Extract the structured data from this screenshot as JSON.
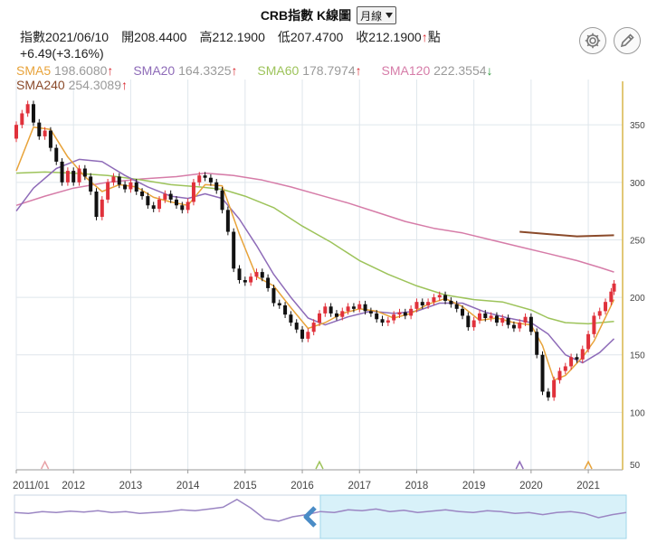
{
  "header": {
    "title": "CRB指數 K線圖",
    "period_select": "月線"
  },
  "quote": {
    "date": "指數2021/06/10",
    "open": "開208.4400",
    "high": "高212.1900",
    "low": "低207.4700",
    "close": "收212.1900",
    "close_arrow": "↑",
    "unit": "點",
    "change": "+6.49(+3.16%)"
  },
  "toolbar": {
    "settings_icon": "gear-icon",
    "draw_icon": "pencil-icon"
  },
  "moving_averages": [
    {
      "label": "SMA5",
      "value": "198.6080",
      "arrow": "↑",
      "color": "#e8a33a",
      "arrow_color": "#d9262e"
    },
    {
      "label": "SMA20",
      "value": "164.3325",
      "arrow": "↑",
      "color": "#8e6bb8",
      "arrow_color": "#d9262e"
    },
    {
      "label": "SMA60",
      "value": "178.7974",
      "arrow": "↑",
      "color": "#9dc35a",
      "arrow_color": "#d9262e"
    },
    {
      "label": "SMA120",
      "value": "222.3554",
      "arrow": "↓",
      "color": "#d67ca8",
      "arrow_color": "#2a9a3a"
    },
    {
      "label": "SMA240",
      "value": "254.3089",
      "arrow": "↑",
      "color": "#8a4a2a",
      "arrow_color": "#d9262e"
    }
  ],
  "colors": {
    "up_candle": "#e0313b",
    "down_candle": "#111111",
    "grid": "#dfe6ec",
    "axis_text": "#444444",
    "navigator_fill": "#d8f1f9",
    "navigator_line": "#9b86c3",
    "navigator_arrow": "#4a8cc6"
  },
  "chart_data": {
    "type": "candlestick",
    "x_axis_labels": [
      "2011/01",
      "2012",
      "2013",
      "2014",
      "2015",
      "2016",
      "2017",
      "2018",
      "2019",
      "2020",
      "2021"
    ],
    "y_axis_labels": [
      "350",
      "300",
      "250",
      "200",
      "150",
      "100",
      "50"
    ],
    "ylim": [
      50,
      380
    ],
    "xlim": [
      2011.0,
      2021.6
    ],
    "candles": [
      [
        2011.0,
        338,
        350
      ],
      [
        2011.1,
        350,
        360
      ],
      [
        2011.2,
        360,
        368
      ],
      [
        2011.3,
        368,
        352
      ],
      [
        2011.4,
        352,
        340
      ],
      [
        2011.5,
        340,
        345
      ],
      [
        2011.6,
        345,
        330
      ],
      [
        2011.7,
        330,
        318
      ],
      [
        2011.8,
        318,
        300
      ],
      [
        2011.9,
        300,
        310
      ],
      [
        2012.0,
        310,
        300
      ],
      [
        2012.1,
        300,
        312
      ],
      [
        2012.2,
        312,
        305
      ],
      [
        2012.3,
        305,
        292
      ],
      [
        2012.4,
        292,
        270
      ],
      [
        2012.5,
        270,
        285
      ],
      [
        2012.6,
        285,
        300
      ],
      [
        2012.7,
        300,
        305
      ],
      [
        2012.8,
        305,
        298
      ],
      [
        2012.9,
        298,
        294
      ],
      [
        2013.0,
        294,
        300
      ],
      [
        2013.1,
        300,
        292
      ],
      [
        2013.2,
        292,
        288
      ],
      [
        2013.3,
        288,
        280
      ],
      [
        2013.4,
        280,
        277
      ],
      [
        2013.5,
        277,
        285
      ],
      [
        2013.6,
        285,
        290
      ],
      [
        2013.7,
        290,
        285
      ],
      [
        2013.8,
        285,
        280
      ],
      [
        2013.9,
        280,
        276
      ],
      [
        2014.0,
        276,
        283
      ],
      [
        2014.1,
        283,
        300
      ],
      [
        2014.2,
        300,
        306
      ],
      [
        2014.3,
        306,
        304
      ],
      [
        2014.4,
        304,
        300
      ],
      [
        2014.5,
        300,
        293
      ],
      [
        2014.6,
        293,
        276
      ],
      [
        2014.7,
        276,
        257
      ],
      [
        2014.8,
        257,
        225
      ],
      [
        2014.9,
        225,
        215
      ],
      [
        2015.0,
        215,
        213
      ],
      [
        2015.1,
        213,
        218
      ],
      [
        2015.2,
        218,
        222
      ],
      [
        2015.3,
        222,
        217
      ],
      [
        2015.4,
        217,
        208
      ],
      [
        2015.5,
        208,
        195
      ],
      [
        2015.6,
        195,
        193
      ],
      [
        2015.7,
        193,
        185
      ],
      [
        2015.8,
        185,
        178
      ],
      [
        2015.9,
        178,
        172
      ],
      [
        2016.0,
        172,
        164
      ],
      [
        2016.1,
        164,
        170
      ],
      [
        2016.2,
        170,
        178
      ],
      [
        2016.3,
        178,
        186
      ],
      [
        2016.4,
        186,
        192
      ],
      [
        2016.5,
        192,
        186
      ],
      [
        2016.6,
        186,
        183
      ],
      [
        2016.7,
        183,
        188
      ],
      [
        2016.8,
        188,
        192
      ],
      [
        2016.9,
        192,
        190
      ],
      [
        2017.0,
        190,
        194
      ],
      [
        2017.1,
        194,
        188
      ],
      [
        2017.2,
        188,
        186
      ],
      [
        2017.3,
        186,
        181
      ],
      [
        2017.4,
        181,
        178
      ],
      [
        2017.5,
        178,
        180
      ],
      [
        2017.6,
        180,
        185
      ],
      [
        2017.7,
        185,
        187
      ],
      [
        2017.8,
        187,
        184
      ],
      [
        2017.9,
        184,
        190
      ],
      [
        2018.0,
        190,
        196
      ],
      [
        2018.1,
        196,
        193
      ],
      [
        2018.2,
        193,
        196
      ],
      [
        2018.3,
        196,
        200
      ],
      [
        2018.4,
        200,
        202
      ],
      [
        2018.5,
        202,
        197
      ],
      [
        2018.6,
        197,
        194
      ],
      [
        2018.7,
        194,
        190
      ],
      [
        2018.8,
        190,
        184
      ],
      [
        2018.9,
        184,
        174
      ],
      [
        2019.0,
        174,
        180
      ],
      [
        2019.1,
        180,
        186
      ],
      [
        2019.2,
        186,
        182
      ],
      [
        2019.3,
        182,
        184
      ],
      [
        2019.4,
        184,
        178
      ],
      [
        2019.5,
        178,
        182
      ],
      [
        2019.6,
        182,
        176
      ],
      [
        2019.7,
        176,
        173
      ],
      [
        2019.8,
        173,
        178
      ],
      [
        2019.9,
        178,
        183
      ],
      [
        2020.0,
        183,
        170
      ],
      [
        2020.1,
        170,
        150
      ],
      [
        2020.2,
        150,
        118
      ],
      [
        2020.3,
        118,
        113
      ],
      [
        2020.4,
        113,
        128
      ],
      [
        2020.5,
        128,
        136
      ],
      [
        2020.6,
        136,
        140
      ],
      [
        2020.7,
        140,
        148
      ],
      [
        2020.8,
        148,
        146
      ],
      [
        2020.9,
        146,
        155
      ],
      [
        2021.0,
        155,
        168
      ],
      [
        2021.1,
        168,
        184
      ],
      [
        2021.2,
        184,
        188
      ],
      [
        2021.3,
        188,
        196
      ],
      [
        2021.4,
        196,
        205
      ],
      [
        2021.45,
        205,
        212
      ]
    ],
    "sma5": [
      [
        2011.0,
        310
      ],
      [
        2011.3,
        348
      ],
      [
        2011.6,
        346
      ],
      [
        2011.9,
        322
      ],
      [
        2012.2,
        305
      ],
      [
        2012.5,
        292
      ],
      [
        2012.8,
        298
      ],
      [
        2013.1,
        296
      ],
      [
        2013.4,
        287
      ],
      [
        2013.7,
        283
      ],
      [
        2014.0,
        280
      ],
      [
        2014.3,
        298
      ],
      [
        2014.6,
        297
      ],
      [
        2014.9,
        255
      ],
      [
        2015.2,
        218
      ],
      [
        2015.5,
        210
      ],
      [
        2015.8,
        191
      ],
      [
        2016.1,
        173
      ],
      [
        2016.4,
        178
      ],
      [
        2016.7,
        186
      ],
      [
        2017.0,
        190
      ],
      [
        2017.3,
        188
      ],
      [
        2017.6,
        182
      ],
      [
        2017.9,
        186
      ],
      [
        2018.2,
        194
      ],
      [
        2018.5,
        199
      ],
      [
        2018.8,
        192
      ],
      [
        2019.1,
        180
      ],
      [
        2019.4,
        182
      ],
      [
        2019.7,
        178
      ],
      [
        2020.0,
        176
      ],
      [
        2020.2,
        158
      ],
      [
        2020.4,
        128
      ],
      [
        2020.6,
        132
      ],
      [
        2020.9,
        148
      ],
      [
        2021.1,
        162
      ],
      [
        2021.45,
        198
      ]
    ],
    "sma20": [
      [
        2011.0,
        275
      ],
      [
        2011.3,
        295
      ],
      [
        2011.7,
        312
      ],
      [
        2012.1,
        320
      ],
      [
        2012.5,
        318
      ],
      [
        2012.9,
        306
      ],
      [
        2013.3,
        296
      ],
      [
        2013.7,
        288
      ],
      [
        2014.0,
        286
      ],
      [
        2014.3,
        290
      ],
      [
        2014.6,
        286
      ],
      [
        2014.9,
        268
      ],
      [
        2015.2,
        245
      ],
      [
        2015.5,
        220
      ],
      [
        2015.8,
        200
      ],
      [
        2016.1,
        182
      ],
      [
        2016.4,
        176
      ],
      [
        2016.8,
        183
      ],
      [
        2017.2,
        188
      ],
      [
        2017.6,
        186
      ],
      [
        2018.0,
        188
      ],
      [
        2018.4,
        195
      ],
      [
        2018.8,
        195
      ],
      [
        2019.2,
        187
      ],
      [
        2019.6,
        182
      ],
      [
        2020.0,
        178
      ],
      [
        2020.3,
        168
      ],
      [
        2020.6,
        150
      ],
      [
        2020.9,
        143
      ],
      [
        2021.2,
        152
      ],
      [
        2021.45,
        164
      ]
    ],
    "sma60": [
      [
        2011.0,
        308
      ],
      [
        2011.5,
        309
      ],
      [
        2012.0,
        308
      ],
      [
        2012.6,
        306
      ],
      [
        2013.2,
        302
      ],
      [
        2013.7,
        298
      ],
      [
        2014.2,
        296
      ],
      [
        2014.6,
        294
      ],
      [
        2015.0,
        288
      ],
      [
        2015.5,
        278
      ],
      [
        2016.0,
        262
      ],
      [
        2016.5,
        248
      ],
      [
        2017.0,
        232
      ],
      [
        2017.5,
        220
      ],
      [
        2018.0,
        210
      ],
      [
        2018.5,
        202
      ],
      [
        2019.0,
        198
      ],
      [
        2019.5,
        196
      ],
      [
        2020.0,
        189
      ],
      [
        2020.3,
        182
      ],
      [
        2020.6,
        178
      ],
      [
        2021.0,
        177
      ],
      [
        2021.45,
        179
      ]
    ],
    "sma120": [
      [
        2011.0,
        280
      ],
      [
        2011.5,
        288
      ],
      [
        2012.0,
        295
      ],
      [
        2012.6,
        300
      ],
      [
        2013.2,
        303
      ],
      [
        2013.8,
        305
      ],
      [
        2014.3,
        308
      ],
      [
        2014.8,
        306
      ],
      [
        2015.3,
        302
      ],
      [
        2015.8,
        296
      ],
      [
        2016.3,
        289
      ],
      [
        2016.8,
        282
      ],
      [
        2017.3,
        274
      ],
      [
        2017.8,
        266
      ],
      [
        2018.3,
        260
      ],
      [
        2018.8,
        256
      ],
      [
        2019.3,
        250
      ],
      [
        2019.8,
        244
      ],
      [
        2020.3,
        238
      ],
      [
        2020.8,
        232
      ],
      [
        2021.2,
        226
      ],
      [
        2021.45,
        222
      ]
    ],
    "sma240": [
      [
        2019.8,
        257
      ],
      [
        2020.3,
        255
      ],
      [
        2020.8,
        253
      ],
      [
        2021.45,
        254
      ]
    ],
    "range_markers": [
      2011.5,
      2016.3,
      2019.8,
      2021.0
    ],
    "navigator": {
      "values": [
        0.6,
        0.58,
        0.62,
        0.6,
        0.63,
        0.61,
        0.64,
        0.6,
        0.62,
        0.58,
        0.6,
        0.62,
        0.66,
        0.64,
        0.68,
        0.72,
        0.9,
        0.7,
        0.45,
        0.4,
        0.5,
        0.55,
        0.62,
        0.6,
        0.66,
        0.64,
        0.68,
        0.62,
        0.65,
        0.6,
        0.63,
        0.66,
        0.62,
        0.6,
        0.64,
        0.62,
        0.58,
        0.6,
        0.55,
        0.6,
        0.62,
        0.58,
        0.48,
        0.55,
        0.6
      ],
      "window_start": 2016.3,
      "window_end": 2021.6
    }
  }
}
